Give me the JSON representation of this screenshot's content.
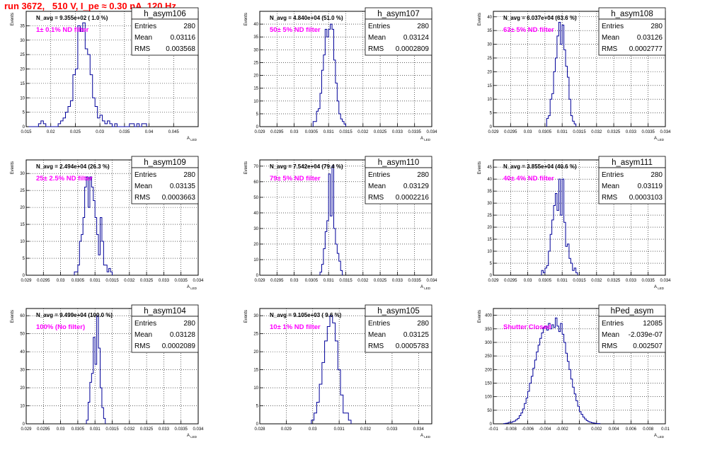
{
  "title": "run 3672,   510 V, I_pe ≈ 0.30 nA, 120 Hz",
  "chart_data": [
    {
      "type": "bar",
      "name": "h_asym106",
      "navg": "N_avg = 9.355e+02 ( 1.0 %)",
      "filter": "1± 0.1% ND filter",
      "entries": "280",
      "mean": "0.03116",
      "rms": "0.003568",
      "ylabel": "Events",
      "xlabel": "A_LED",
      "xlim": [
        0.015,
        0.05
      ],
      "ylim": [
        0,
        40
      ],
      "xticks": [
        0.015,
        0.02,
        0.025,
        0.03,
        0.035,
        0.04,
        0.045
      ],
      "xtick_labels": [
        "0.015",
        "0.02",
        "0.025",
        "0.03",
        "0.035",
        "0.04",
        "0.045"
      ],
      "yticks": [
        0,
        5,
        10,
        15,
        20,
        25,
        30,
        35
      ],
      "bin_lo": 0.0155,
      "bin_w": 0.0005,
      "values": [
        0,
        0,
        0,
        0,
        1,
        2,
        1,
        0,
        0,
        0,
        0,
        0,
        1,
        2,
        3,
        5,
        7,
        9,
        18,
        20,
        35,
        33,
        36,
        27,
        25,
        18,
        10,
        7,
        3,
        4,
        2,
        1,
        2,
        1,
        0,
        1,
        0,
        0,
        0,
        0,
        0,
        1,
        1,
        0,
        1,
        0,
        1,
        1
      ]
    },
    {
      "type": "bar",
      "name": "h_asym107",
      "navg": "N_avg = 4.840e+04 (51.0 %)",
      "filter": "50± 5% ND filter",
      "entries": "280",
      "mean": "0.03124",
      "rms": "0.0002809",
      "ylabel": "Events",
      "xlabel": "A_LED",
      "xlim": [
        0.029,
        0.034
      ],
      "ylim": [
        0,
        45
      ],
      "xticks": [
        0.029,
        0.0295,
        0.03,
        0.0305,
        0.031,
        0.0315,
        0.032,
        0.0325,
        0.033,
        0.0335,
        0.034
      ],
      "xtick_labels": [
        "0.029",
        "0.0295",
        "0.03",
        "0.0305",
        "0.031",
        "0.0315",
        "0.032",
        "0.0325",
        "0.033",
        "0.0335",
        "0.034"
      ],
      "yticks": [
        0,
        5,
        10,
        15,
        20,
        25,
        30,
        35,
        40
      ],
      "bin_lo": 0.03055,
      "bin_w": 5e-05,
      "values": [
        2,
        2,
        6,
        7,
        13,
        22,
        28,
        38,
        35,
        38,
        40,
        38,
        26,
        17,
        10,
        5,
        3,
        2,
        1
      ]
    },
    {
      "type": "bar",
      "name": "h_asym108",
      "navg": "N_avg = 6.037e+04 (63.6 %)",
      "filter": "63± 5% ND filter",
      "entries": "280",
      "mean": "0.03126",
      "rms": "0.0002777",
      "ylabel": "Events",
      "xlabel": "A_LED",
      "xlim": [
        0.029,
        0.034
      ],
      "ylim": [
        0,
        42
      ],
      "xticks": [
        0.029,
        0.0295,
        0.03,
        0.0305,
        0.031,
        0.0315,
        0.032,
        0.0325,
        0.033,
        0.0335,
        0.034
      ],
      "xtick_labels": [
        "0.029",
        "0.0295",
        "0.03",
        "0.0305",
        "0.031",
        "0.0315",
        "0.032",
        "0.0325",
        "0.033",
        "0.0335",
        "0.034"
      ],
      "yticks": [
        0,
        5,
        10,
        15,
        20,
        25,
        30,
        35,
        40
      ],
      "bin_lo": 0.03055,
      "bin_w": 5e-05,
      "values": [
        3,
        4,
        10,
        12,
        20,
        25,
        33,
        38,
        30,
        37,
        28,
        22,
        18,
        10,
        4,
        2,
        1
      ]
    },
    {
      "type": "bar",
      "name": "h_asym109",
      "navg": "N_avg = 2.494e+04 (26.3 %)",
      "filter": "25± 2.5% ND filter",
      "entries": "280",
      "mean": "0.03135",
      "rms": "0.0003663",
      "ylabel": "Events",
      "xlabel": "A_LED",
      "xlim": [
        0.029,
        0.034
      ],
      "ylim": [
        0,
        34
      ],
      "xticks": [
        0.029,
        0.0295,
        0.03,
        0.0305,
        0.031,
        0.0315,
        0.032,
        0.0325,
        0.033,
        0.0335,
        0.034
      ],
      "xtick_labels": [
        "0.029",
        "0.0295",
        "0.03",
        "0.0305",
        "0.031",
        "0.0315",
        "0.032",
        "0.0325",
        "0.033",
        "0.0335",
        "0.034"
      ],
      "yticks": [
        0,
        5,
        10,
        15,
        20,
        25,
        30
      ],
      "bin_lo": 0.0304,
      "bin_w": 5e-05,
      "values": [
        1,
        1,
        3,
        10,
        12,
        17,
        26,
        29,
        20,
        29,
        26,
        22,
        17,
        12,
        6,
        17,
        10,
        3,
        3,
        1,
        2,
        1
      ]
    },
    {
      "type": "bar",
      "name": "h_asym110",
      "navg": "N_avg = 7.542e+04 (79.4 %)",
      "filter": "79± 5% ND filter",
      "entries": "280",
      "mean": "0.03129",
      "rms": "0.0002216",
      "ylabel": "Events",
      "xlabel": "A_LED",
      "xlim": [
        0.029,
        0.034
      ],
      "ylim": [
        0,
        74
      ],
      "xticks": [
        0.029,
        0.0295,
        0.03,
        0.0305,
        0.031,
        0.0315,
        0.032,
        0.0325,
        0.033,
        0.0335,
        0.034
      ],
      "xtick_labels": [
        "0.029",
        "0.0295",
        "0.03",
        "0.0305",
        "0.031",
        "0.0315",
        "0.032",
        "0.0325",
        "0.033",
        "0.0335",
        "0.034"
      ],
      "yticks": [
        0,
        10,
        20,
        30,
        40,
        50,
        60,
        70
      ],
      "bin_lo": 0.03075,
      "bin_w": 5e-05,
      "values": [
        2,
        7,
        17,
        28,
        35,
        65,
        38,
        70,
        30,
        20,
        14,
        9,
        3
      ]
    },
    {
      "type": "bar",
      "name": "h_asym111",
      "navg": "N_avg = 3.855e+04 (40.6 %)",
      "filter": "40± 4% ND filter",
      "entries": "280",
      "mean": "0.03119",
      "rms": "0.0003103",
      "ylabel": "Events",
      "xlabel": "A_LED",
      "xlim": [
        0.029,
        0.034
      ],
      "ylim": [
        0,
        48
      ],
      "xticks": [
        0.029,
        0.0295,
        0.03,
        0.0305,
        0.031,
        0.0315,
        0.032,
        0.0325,
        0.033,
        0.0335,
        0.034
      ],
      "xtick_labels": [
        "0.029",
        "0.0295",
        "0.03",
        "0.0305",
        "0.031",
        "0.0315",
        "0.032",
        "0.0325",
        "0.033",
        "0.0335",
        "0.034"
      ],
      "yticks": [
        0,
        5,
        10,
        15,
        20,
        25,
        30,
        35,
        40,
        45
      ],
      "bin_lo": 0.0304,
      "bin_w": 5e-05,
      "values": [
        2,
        1,
        3,
        4,
        10,
        17,
        23,
        29,
        34,
        27,
        40,
        25,
        40,
        22,
        12,
        13,
        7,
        5,
        2,
        3,
        1
      ]
    },
    {
      "type": "bar",
      "name": "h_asym104",
      "navg": "N_avg = 9.499e+04 (100.0 %)",
      "filter": "100% (No filter)",
      "entries": "280",
      "mean": "0.03128",
      "rms": "0.0002089",
      "ylabel": "Events",
      "xlabel": "A_LED",
      "xlim": [
        0.029,
        0.034
      ],
      "ylim": [
        0,
        64
      ],
      "xticks": [
        0.029,
        0.0295,
        0.03,
        0.0305,
        0.031,
        0.0315,
        0.032,
        0.0325,
        0.033,
        0.0335,
        0.034
      ],
      "xtick_labels": [
        "0.029",
        "0.0295",
        "0.03",
        "0.0305",
        "0.031",
        "0.0315",
        "0.032",
        "0.0325",
        "0.033",
        "0.0335",
        "0.034"
      ],
      "yticks": [
        0,
        10,
        20,
        30,
        40,
        50,
        60
      ],
      "bin_lo": 0.03075,
      "bin_w": 5e-05,
      "values": [
        2,
        12,
        23,
        28,
        48,
        33,
        60,
        42,
        20,
        9,
        3
      ]
    },
    {
      "type": "bar",
      "name": "h_asym105",
      "navg": "N_avg = 9.105e+03 ( 9.6 %)",
      "filter": "10± 1% ND filter",
      "entries": "280",
      "mean": "0.03125",
      "rms": "0.0005783",
      "ylabel": "Events",
      "xlabel": "A_LED",
      "xlim": [
        0.028,
        0.0345
      ],
      "ylim": [
        0,
        32
      ],
      "xticks": [
        0.028,
        0.029,
        0.03,
        0.031,
        0.032,
        0.033,
        0.034
      ],
      "xtick_labels": [
        "0.028",
        "0.029",
        "0.03",
        "0.031",
        "0.032",
        "0.033",
        "0.034"
      ],
      "yticks": [
        0,
        5,
        10,
        15,
        20,
        25,
        30
      ],
      "bin_lo": 0.02995,
      "bin_w": 0.0001,
      "values": [
        1,
        3,
        6,
        11,
        17,
        23,
        27,
        30,
        28,
        23,
        15,
        8,
        3,
        3,
        1
      ]
    },
    {
      "type": "bar",
      "name": "hPed_asym",
      "navg": "",
      "filter": "Shutter Closed",
      "entries": "12085",
      "mean": "-2.039e-07",
      "rms": "0.002507",
      "ylabel": "Events",
      "xlabel": "A_LED",
      "xlim": [
        -0.01,
        0.01
      ],
      "ylim": [
        0,
        425
      ],
      "xticks": [
        -0.01,
        -0.008,
        -0.006,
        -0.004,
        -0.002,
        0,
        0.002,
        0.004,
        0.006,
        0.008,
        0.01
      ],
      "xtick_labels": [
        "-0.01",
        "-0.008",
        "-0.006",
        "-0.004",
        "-0.002",
        "0",
        "0.002",
        "0.004",
        "0.006",
        "0.008",
        "0.01"
      ],
      "yticks": [
        0,
        50,
        100,
        150,
        200,
        250,
        300,
        350,
        400
      ],
      "bin_lo": -0.0088,
      "bin_w": 0.0002,
      "values": [
        1,
        2,
        3,
        6,
        5,
        8,
        10,
        15,
        20,
        30,
        40,
        55,
        75,
        95,
        120,
        150,
        175,
        205,
        235,
        265,
        290,
        315,
        335,
        355,
        360,
        345,
        370,
        350,
        365,
        355,
        390,
        360,
        340,
        370,
        330,
        300,
        260,
        230,
        200,
        165,
        135,
        110,
        85,
        65,
        45,
        35,
        25,
        18,
        12,
        8,
        6,
        4,
        3,
        2,
        1,
        1
      ]
    }
  ]
}
